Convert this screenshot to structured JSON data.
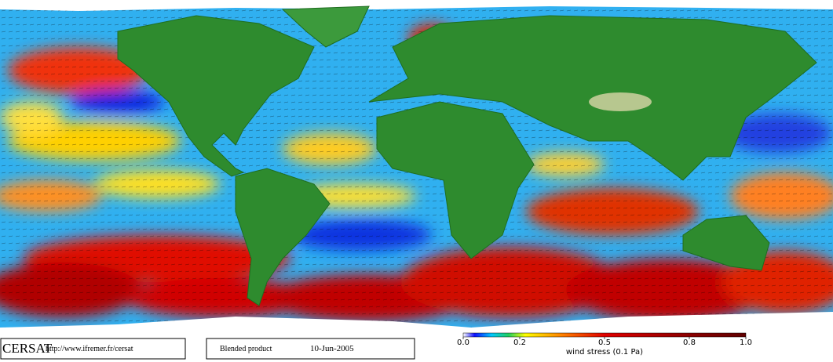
{
  "footer": {
    "logo": "CERSAT",
    "url": "http://www.ifremer.fr/cersat",
    "product": "Blended product",
    "date": "10-Jun-2005"
  },
  "colorbar": {
    "range": [
      0,
      1
    ],
    "ticks": [
      {
        "value": 0,
        "label": "0.0"
      },
      0.2,
      0.5,
      0.8,
      {
        "value": 1,
        "label": "1.0"
      }
    ],
    "label": "wind stress (0.1 Pa)"
  }
}
